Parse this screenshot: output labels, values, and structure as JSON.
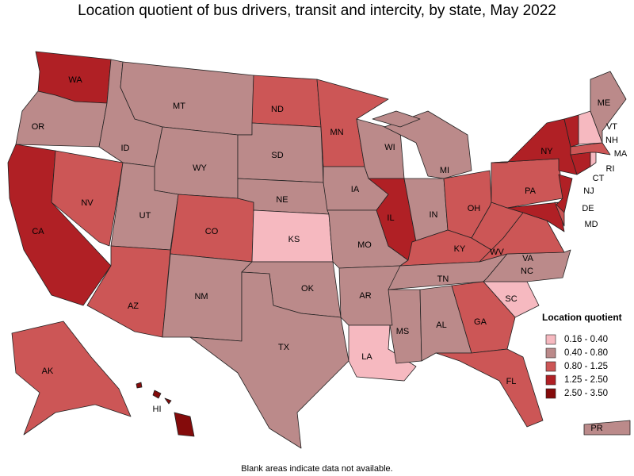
{
  "title": "Location quotient of bus drivers, transit and intercity, by state, May 2022",
  "footnote": "Blank areas indicate data not available.",
  "legend": {
    "title": "Location quotient",
    "items": [
      {
        "label": "0.16 - 0.40",
        "color": "#f6b9c0"
      },
      {
        "label": "0.40 - 0.80",
        "color": "#bb8a8a"
      },
      {
        "label": "0.80 - 1.25",
        "color": "#cc5656"
      },
      {
        "label": "1.25 - 2.50",
        "color": "#b02025"
      },
      {
        "label": "2.50 - 3.50",
        "color": "#840b0b"
      }
    ]
  },
  "states": [
    {
      "abbr": "WA",
      "range": "1.25 - 2.50"
    },
    {
      "abbr": "OR",
      "range": "0.40 - 0.80"
    },
    {
      "abbr": "CA",
      "range": "1.25 - 2.50"
    },
    {
      "abbr": "NV",
      "range": "0.80 - 1.25"
    },
    {
      "abbr": "ID",
      "range": "0.40 - 0.80"
    },
    {
      "abbr": "MT",
      "range": "0.40 - 0.80"
    },
    {
      "abbr": "WY",
      "range": "0.40 - 0.80"
    },
    {
      "abbr": "UT",
      "range": "0.40 - 0.80"
    },
    {
      "abbr": "AZ",
      "range": "0.80 - 1.25"
    },
    {
      "abbr": "CO",
      "range": "0.80 - 1.25"
    },
    {
      "abbr": "NM",
      "range": "0.40 - 0.80"
    },
    {
      "abbr": "ND",
      "range": "0.80 - 1.25"
    },
    {
      "abbr": "SD",
      "range": "0.40 - 0.80"
    },
    {
      "abbr": "NE",
      "range": "0.40 - 0.80"
    },
    {
      "abbr": "KS",
      "range": "0.16 - 0.40"
    },
    {
      "abbr": "OK",
      "range": "0.40 - 0.80"
    },
    {
      "abbr": "TX",
      "range": "0.40 - 0.80"
    },
    {
      "abbr": "MN",
      "range": "0.80 - 1.25"
    },
    {
      "abbr": "IA",
      "range": "0.40 - 0.80"
    },
    {
      "abbr": "MO",
      "range": "0.40 - 0.80"
    },
    {
      "abbr": "AR",
      "range": "0.40 - 0.80"
    },
    {
      "abbr": "LA",
      "range": "0.16 - 0.40"
    },
    {
      "abbr": "WI",
      "range": "0.40 - 0.80"
    },
    {
      "abbr": "IL",
      "range": "1.25 - 2.50"
    },
    {
      "abbr": "MI",
      "range": "0.40 - 0.80"
    },
    {
      "abbr": "IN",
      "range": "0.40 - 0.80"
    },
    {
      "abbr": "OH",
      "range": "0.80 - 1.25"
    },
    {
      "abbr": "KY",
      "range": "0.80 - 1.25"
    },
    {
      "abbr": "TN",
      "range": "0.40 - 0.80"
    },
    {
      "abbr": "MS",
      "range": "0.40 - 0.80"
    },
    {
      "abbr": "AL",
      "range": "0.40 - 0.80"
    },
    {
      "abbr": "GA",
      "range": "0.80 - 1.25"
    },
    {
      "abbr": "FL",
      "range": "0.80 - 1.25"
    },
    {
      "abbr": "SC",
      "range": "0.16 - 0.40"
    },
    {
      "abbr": "NC",
      "range": "0.40 - 0.80"
    },
    {
      "abbr": "VA",
      "range": "0.80 - 1.25"
    },
    {
      "abbr": "WV",
      "range": "0.80 - 1.25"
    },
    {
      "abbr": "MD",
      "range": "1.25 - 2.50"
    },
    {
      "abbr": "DE",
      "range": "0.80 - 1.25"
    },
    {
      "abbr": "PA",
      "range": "0.80 - 1.25"
    },
    {
      "abbr": "NJ",
      "range": "1.25 - 2.50"
    },
    {
      "abbr": "NY",
      "range": "1.25 - 2.50"
    },
    {
      "abbr": "CT",
      "range": "1.25 - 2.50"
    },
    {
      "abbr": "RI",
      "range": "0.16 - 0.40"
    },
    {
      "abbr": "MA",
      "range": "0.80 - 1.25"
    },
    {
      "abbr": "VT",
      "range": "1.25 - 2.50"
    },
    {
      "abbr": "NH",
      "range": "0.16 - 0.40"
    },
    {
      "abbr": "ME",
      "range": "0.40 - 0.80"
    },
    {
      "abbr": "AK",
      "range": "0.80 - 1.25"
    },
    {
      "abbr": "HI",
      "range": "2.50 - 3.50"
    },
    {
      "abbr": "PR",
      "range": "0.40 - 0.80"
    }
  ]
}
